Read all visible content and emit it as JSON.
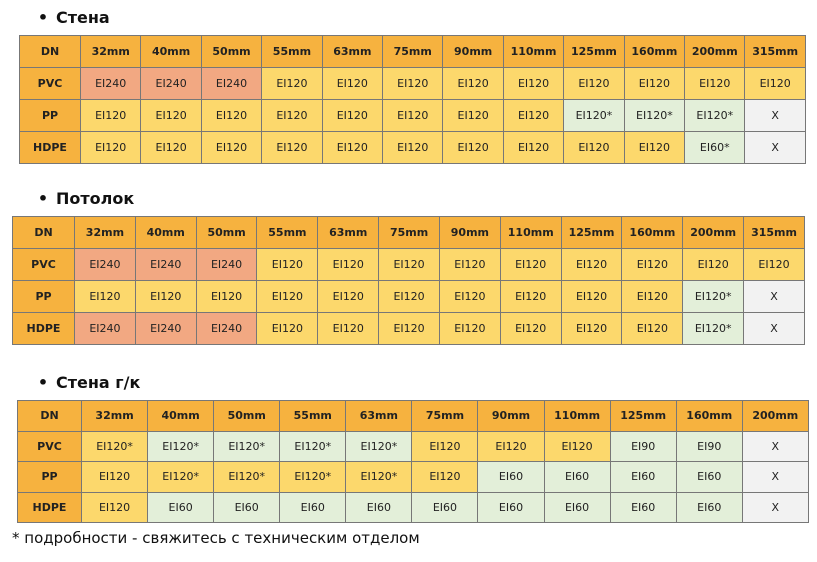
{
  "header_color": "#f6b23f",
  "sections": [
    {
      "title": "Стена",
      "header": [
        "DN",
        "32mm",
        "40mm",
        "50mm",
        "55mm",
        "63mm",
        "75mm",
        "90mm",
        "110mm",
        "125mm",
        "160mm",
        "200mm",
        "315mm"
      ],
      "rows": [
        {
          "label": "PVC",
          "cells": [
            "EI240",
            "EI240",
            "EI240",
            "EI120",
            "EI120",
            "EI120",
            "EI120",
            "EI120",
            "EI120",
            "EI120",
            "EI120",
            "EI120"
          ],
          "fills": [
            "#f2a882",
            "#f2a882",
            "#f2a882",
            "#fcd86c",
            "#fcd86c",
            "#fcd86c",
            "#fcd86c",
            "#fcd86c",
            "#fcd86c",
            "#fcd86c",
            "#fcd86c",
            "#fcd86c"
          ]
        },
        {
          "label": "PP",
          "cells": [
            "EI120",
            "EI120",
            "EI120",
            "EI120",
            "EI120",
            "EI120",
            "EI120",
            "EI120",
            "EI120*",
            "EI120*",
            "EI120*",
            "X"
          ],
          "fills": [
            "#fcd86c",
            "#fcd86c",
            "#fcd86c",
            "#fcd86c",
            "#fcd86c",
            "#fcd86c",
            "#fcd86c",
            "#fcd86c",
            "#e3efd9",
            "#e3efd9",
            "#e3efd9",
            "#f2f2f2"
          ]
        },
        {
          "label": "HDPE",
          "cells": [
            "EI120",
            "EI120",
            "EI120",
            "EI120",
            "EI120",
            "EI120",
            "EI120",
            "EI120",
            "EI120",
            "EI120",
            "EI60*",
            "X"
          ],
          "fills": [
            "#fcd86c",
            "#fcd86c",
            "#fcd86c",
            "#fcd86c",
            "#fcd86c",
            "#fcd86c",
            "#fcd86c",
            "#fcd86c",
            "#fcd86c",
            "#fcd86c",
            "#e3efd9",
            "#f2f2f2"
          ]
        }
      ]
    },
    {
      "title": "Потолок",
      "header": [
        "DN",
        "32mm",
        "40mm",
        "50mm",
        "55mm",
        "63mm",
        "75mm",
        "90mm",
        "110mm",
        "125mm",
        "160mm",
        "200mm",
        "315mm"
      ],
      "rows": [
        {
          "label": "PVC",
          "cells": [
            "EI240",
            "EI240",
            "EI240",
            "EI120",
            "EI120",
            "EI120",
            "EI120",
            "EI120",
            "EI120",
            "EI120",
            "EI120",
            "EI120"
          ],
          "fills": [
            "#f2a882",
            "#f2a882",
            "#f2a882",
            "#fcd86c",
            "#fcd86c",
            "#fcd86c",
            "#fcd86c",
            "#fcd86c",
            "#fcd86c",
            "#fcd86c",
            "#fcd86c",
            "#fcd86c"
          ]
        },
        {
          "label": "PP",
          "cells": [
            "EI120",
            "EI120",
            "EI120",
            "EI120",
            "EI120",
            "EI120",
            "EI120",
            "EI120",
            "EI120",
            "EI120",
            "EI120*",
            "X"
          ],
          "fills": [
            "#fcd86c",
            "#fcd86c",
            "#fcd86c",
            "#fcd86c",
            "#fcd86c",
            "#fcd86c",
            "#fcd86c",
            "#fcd86c",
            "#fcd86c",
            "#fcd86c",
            "#e3efd9",
            "#f2f2f2"
          ]
        },
        {
          "label": "HDPE",
          "cells": [
            "EI240",
            "EI240",
            "EI240",
            "EI120",
            "EI120",
            "EI120",
            "EI120",
            "EI120",
            "EI120",
            "EI120",
            "EI120*",
            "X"
          ],
          "fills": [
            "#f2a882",
            "#f2a882",
            "#f2a882",
            "#fcd86c",
            "#fcd86c",
            "#fcd86c",
            "#fcd86c",
            "#fcd86c",
            "#fcd86c",
            "#fcd86c",
            "#e3efd9",
            "#f2f2f2"
          ]
        }
      ]
    },
    {
      "title": "Стена г/к",
      "header": [
        "DN",
        "32mm",
        "40mm",
        "50mm",
        "55mm",
        "63mm",
        "75mm",
        "90mm",
        "110mm",
        "125mm",
        "160mm",
        "200mm"
      ],
      "rows": [
        {
          "label": "PVC",
          "cells": [
            "EI120*",
            "EI120*",
            "EI120*",
            "EI120*",
            "EI120*",
            "EI120",
            "EI120",
            "EI120",
            "EI90",
            "EI90",
            "X"
          ],
          "fills": [
            "#fcd86c",
            "#e3efd9",
            "#e3efd9",
            "#e3efd9",
            "#e3efd9",
            "#fcd86c",
            "#fcd86c",
            "#fcd86c",
            "#e3efd9",
            "#e3efd9",
            "#f2f2f2"
          ]
        },
        {
          "label": "PP",
          "cells": [
            "EI120",
            "EI120*",
            "EI120*",
            "EI120*",
            "EI120*",
            "EI120",
            "EI60",
            "EI60",
            "EI60",
            "EI60",
            "X"
          ],
          "fills": [
            "#fcd86c",
            "#fcd86c",
            "#fcd86c",
            "#fcd86c",
            "#fcd86c",
            "#fcd86c",
            "#e3efd9",
            "#e3efd9",
            "#e3efd9",
            "#e3efd9",
            "#f2f2f2"
          ]
        },
        {
          "label": "HDPE",
          "cells": [
            "EI120",
            "EI60",
            "EI60",
            "EI60",
            "EI60",
            "EI60",
            "EI60",
            "EI60",
            "EI60",
            "EI60",
            "X"
          ],
          "fills": [
            "#fcd86c",
            "#e3efd9",
            "#e3efd9",
            "#e3efd9",
            "#e3efd9",
            "#e3efd9",
            "#e3efd9",
            "#e3efd9",
            "#e3efd9",
            "#e3efd9",
            "#f2f2f2"
          ]
        }
      ]
    }
  ],
  "footnote": "* подробности - свяжитесь с техническим отделом"
}
